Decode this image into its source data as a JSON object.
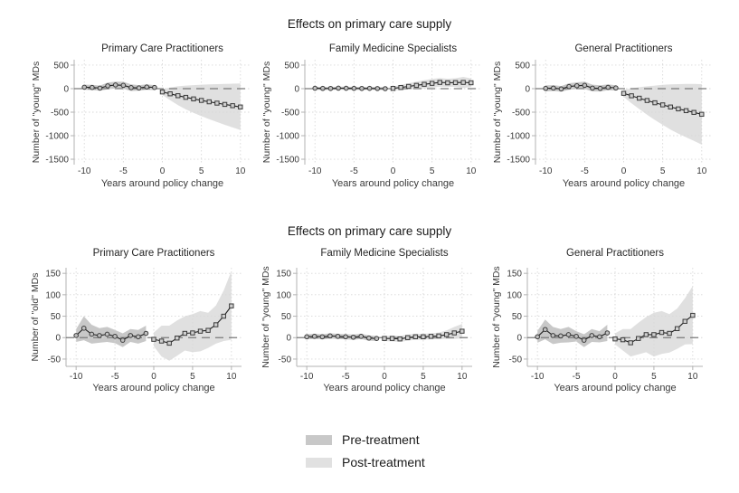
{
  "titles": {
    "row1": "Effects on primary care supply",
    "row2": "Effects on primary care supply"
  },
  "legend": {
    "items": [
      {
        "label": "Pre-treatment",
        "color": "#c8c8c8"
      },
      {
        "label": "Post-treatment",
        "color": "#e1e1e1"
      }
    ]
  },
  "colors": {
    "line": "#222222",
    "marker_fill_pre": "#c0c0c0",
    "marker_fill_post": "#d0d0d0",
    "marker_stroke": "#3a3a3a",
    "ref_line": "#7a7a7a",
    "axis": "#b3b3b3",
    "grid": "#d8d8d8"
  },
  "chart_data": [
    {
      "id": "top-primary-care-practitioners",
      "row": 1,
      "type": "line",
      "title": "Primary Care Practitioners",
      "xlabel": "Years around policy change",
      "ylabel": "Number of \"young\" MDs",
      "xticks": [
        -10,
        -5,
        0,
        5,
        10
      ],
      "yticks": [
        500,
        0,
        -500,
        -1000,
        -1500
      ],
      "xlim": [
        -11.3,
        11.3
      ],
      "ylim": [
        -1615,
        615
      ],
      "ref_line": 0,
      "grid": true,
      "series": [
        {
          "name": "Pre-treatment",
          "marker": "circle",
          "band_color": "#c8c8c8",
          "x": [
            -10,
            -9,
            -8,
            -7,
            -6,
            -5,
            -4,
            -3,
            -2,
            -1
          ],
          "y": [
            30,
            25,
            12,
            60,
            78,
            70,
            22,
            15,
            35,
            25
          ],
          "band_hi": [
            85,
            80,
            65,
            130,
            150,
            145,
            90,
            75,
            90,
            75
          ],
          "band_lo": [
            -25,
            -30,
            -45,
            -15,
            5,
            -5,
            -50,
            -45,
            -25,
            -30
          ]
        },
        {
          "name": "Post-treatment",
          "marker": "square",
          "band_color": "#e0e0e0",
          "x": [
            0,
            1,
            2,
            3,
            4,
            5,
            6,
            7,
            8,
            9,
            10
          ],
          "y": [
            -70,
            -110,
            -150,
            -185,
            -218,
            -250,
            -280,
            -308,
            -335,
            -362,
            -390
          ],
          "band_hi": [
            -10,
            25,
            50,
            65,
            75,
            85,
            90,
            95,
            100,
            105,
            110
          ],
          "band_lo": [
            -135,
            -245,
            -350,
            -440,
            -515,
            -585,
            -650,
            -710,
            -770,
            -825,
            -880
          ]
        }
      ]
    },
    {
      "id": "top-family-medicine-specialists",
      "row": 1,
      "type": "line",
      "title": "Family Medicine Specialists",
      "xlabel": "Years around policy change",
      "ylabel": "Number of \"young\" MDs",
      "xticks": [
        -10,
        -5,
        0,
        5,
        10
      ],
      "yticks": [
        500,
        0,
        -500,
        -1000,
        -1500
      ],
      "xlim": [
        -11.3,
        11.3
      ],
      "ylim": [
        -1615,
        615
      ],
      "ref_line": 0,
      "grid": true,
      "series": [
        {
          "name": "Pre-treatment",
          "marker": "circle",
          "band_color": "#c8c8c8",
          "x": [
            -10,
            -9,
            -8,
            -7,
            -6,
            -5,
            -4,
            -3,
            -2,
            -1
          ],
          "y": [
            8,
            5,
            4,
            10,
            8,
            6,
            4,
            6,
            2,
            0
          ],
          "band_hi": [
            40,
            36,
            35,
            42,
            40,
            38,
            35,
            36,
            32,
            30
          ],
          "band_lo": [
            -25,
            -27,
            -28,
            -22,
            -25,
            -27,
            -28,
            -25,
            -28,
            -30
          ]
        },
        {
          "name": "Post-treatment",
          "marker": "square",
          "band_color": "#e0e0e0",
          "x": [
            0,
            1,
            2,
            3,
            4,
            5,
            6,
            7,
            8,
            9,
            10
          ],
          "y": [
            5,
            25,
            48,
            70,
            92,
            112,
            132,
            124,
            128,
            132,
            125
          ],
          "band_hi": [
            45,
            80,
            115,
            150,
            180,
            205,
            225,
            210,
            220,
            250,
            215
          ],
          "band_lo": [
            -35,
            -30,
            -18,
            -8,
            5,
            20,
            40,
            38,
            38,
            15,
            35
          ]
        }
      ]
    },
    {
      "id": "top-general-practitioners",
      "row": 1,
      "type": "line",
      "title": "General Practitioners",
      "xlabel": "Years around policy change",
      "ylabel": "Number of \"young\" MDs",
      "xticks": [
        -10,
        -5,
        0,
        5,
        10
      ],
      "yticks": [
        500,
        0,
        -500,
        -1000,
        -1500
      ],
      "xlim": [
        -11.3,
        11.3
      ],
      "ylim": [
        -1615,
        615
      ],
      "ref_line": 0,
      "grid": true,
      "series": [
        {
          "name": "Pre-treatment",
          "marker": "circle",
          "band_color": "#c8c8c8",
          "x": [
            -10,
            -9,
            -8,
            -7,
            -6,
            -5,
            -4,
            -3,
            -2,
            -1
          ],
          "y": [
            5,
            12,
            -5,
            45,
            62,
            70,
            12,
            5,
            28,
            15
          ],
          "band_hi": [
            70,
            75,
            55,
            115,
            135,
            150,
            85,
            70,
            90,
            70
          ],
          "band_lo": [
            -60,
            -50,
            -65,
            -25,
            -10,
            -10,
            -60,
            -60,
            -35,
            -40
          ]
        },
        {
          "name": "Post-treatment",
          "marker": "square",
          "band_color": "#e0e0e0",
          "x": [
            0,
            1,
            2,
            3,
            4,
            5,
            6,
            7,
            8,
            9,
            10
          ],
          "y": [
            -100,
            -152,
            -203,
            -252,
            -300,
            -345,
            -390,
            -430,
            -468,
            -505,
            -545
          ],
          "band_hi": [
            -25,
            5,
            30,
            50,
            65,
            80,
            90,
            95,
            100,
            100,
            95
          ],
          "band_lo": [
            -175,
            -310,
            -435,
            -555,
            -665,
            -770,
            -870,
            -955,
            -1035,
            -1110,
            -1190
          ]
        }
      ]
    },
    {
      "id": "bottom-primary-care-practitioners",
      "row": 2,
      "type": "line",
      "title": "Primary Care Practitioners",
      "xlabel": "Years around policy change",
      "ylabel": "Number of \"old\" MDs",
      "xticks": [
        -10,
        -5,
        0,
        5,
        10
      ],
      "yticks": [
        150,
        100,
        50,
        0,
        -50
      ],
      "xlim": [
        -11.3,
        11.3
      ],
      "ylim": [
        -67,
        163
      ],
      "ref_line": 0,
      "grid": true,
      "series": [
        {
          "name": "Pre-treatment",
          "marker": "circle",
          "band_color": "#c8c8c8",
          "x": [
            -10,
            -9,
            -8,
            -7,
            -6,
            -5,
            -4,
            -3,
            -2,
            -1
          ],
          "y": [
            5,
            22,
            8,
            5,
            8,
            3,
            -6,
            5,
            2,
            10
          ],
          "band_hi": [
            20,
            50,
            30,
            22,
            25,
            18,
            10,
            20,
            18,
            28
          ],
          "band_lo": [
            -10,
            -6,
            -14,
            -12,
            -10,
            -13,
            -22,
            -10,
            -14,
            -8
          ]
        },
        {
          "name": "Post-treatment",
          "marker": "square",
          "band_color": "#e0e0e0",
          "x": [
            0,
            1,
            2,
            3,
            4,
            5,
            6,
            7,
            8,
            9,
            10
          ],
          "y": [
            -4,
            -8,
            -13,
            -1,
            10,
            11,
            15,
            17,
            30,
            50,
            74
          ],
          "band_hi": [
            12,
            28,
            28,
            40,
            50,
            55,
            62,
            58,
            75,
            110,
            155
          ],
          "band_lo": [
            -20,
            -44,
            -54,
            -42,
            -30,
            -34,
            -32,
            -24,
            -14,
            -8,
            -5
          ]
        }
      ]
    },
    {
      "id": "bottom-family-medicine-specialists",
      "row": 2,
      "type": "line",
      "title": "Family Medicine Specialists",
      "xlabel": "Years around policy change",
      "ylabel": "Number of \"young\" MDs",
      "xticks": [
        -10,
        -5,
        0,
        5,
        10
      ],
      "yticks": [
        150,
        100,
        50,
        0,
        -50
      ],
      "xlim": [
        -11.3,
        11.3
      ],
      "ylim": [
        -67,
        163
      ],
      "ref_line": 0,
      "grid": true,
      "series": [
        {
          "name": "Pre-treatment",
          "marker": "circle",
          "band_color": "#c8c8c8",
          "x": [
            -10,
            -9,
            -8,
            -7,
            -6,
            -5,
            -4,
            -3,
            -2,
            -1
          ],
          "y": [
            2,
            3,
            2,
            4,
            3,
            2,
            1,
            3,
            -1,
            -2
          ],
          "band_hi": [
            8,
            9,
            8,
            10,
            9,
            8,
            7,
            9,
            5,
            4
          ],
          "band_lo": [
            -4,
            -3,
            -4,
            -2,
            -3,
            -4,
            -5,
            -3,
            -7,
            -8
          ]
        },
        {
          "name": "Post-treatment",
          "marker": "square",
          "band_color": "#e0e0e0",
          "x": [
            0,
            1,
            2,
            3,
            4,
            5,
            6,
            7,
            8,
            9,
            10
          ],
          "y": [
            -2,
            -2,
            -3,
            0,
            2,
            2,
            3,
            4,
            7,
            11,
            15
          ],
          "band_hi": [
            4,
            5,
            4,
            7,
            9,
            9,
            10,
            12,
            17,
            25,
            32
          ],
          "band_lo": [
            -8,
            -9,
            -10,
            -7,
            -5,
            -5,
            -4,
            -4,
            -3,
            -3,
            -2
          ]
        }
      ]
    },
    {
      "id": "bottom-general-practitioners",
      "row": 2,
      "type": "line",
      "title": "General Practitioners",
      "xlabel": "Years around policy change",
      "ylabel": "Number of \"young\" MDs",
      "xticks": [
        -10,
        -5,
        0,
        5,
        10
      ],
      "yticks": [
        150,
        100,
        50,
        0,
        -50
      ],
      "xlim": [
        -11.3,
        11.3
      ],
      "ylim": [
        -67,
        163
      ],
      "ref_line": 0,
      "grid": true,
      "series": [
        {
          "name": "Pre-treatment",
          "marker": "circle",
          "band_color": "#c8c8c8",
          "x": [
            -10,
            -9,
            -8,
            -7,
            -6,
            -5,
            -4,
            -3,
            -2,
            -1
          ],
          "y": [
            2,
            19,
            5,
            4,
            7,
            3,
            -6,
            5,
            2,
            11
          ],
          "band_hi": [
            16,
            42,
            25,
            20,
            25,
            15,
            8,
            20,
            15,
            30
          ],
          "band_lo": [
            -12,
            -4,
            -15,
            -12,
            -11,
            -9,
            -22,
            -10,
            -11,
            -8
          ]
        },
        {
          "name": "Post-treatment",
          "marker": "square",
          "band_color": "#e0e0e0",
          "x": [
            0,
            1,
            2,
            3,
            4,
            5,
            6,
            7,
            8,
            9,
            10
          ],
          "y": [
            -3,
            -5,
            -12,
            -2,
            7,
            7,
            12,
            10,
            21,
            38,
            52
          ],
          "band_hi": [
            10,
            20,
            20,
            35,
            48,
            58,
            62,
            55,
            68,
            92,
            120
          ],
          "band_lo": [
            -16,
            -30,
            -44,
            -39,
            -34,
            -44,
            -38,
            -35,
            -26,
            -16,
            -15
          ]
        }
      ]
    }
  ]
}
